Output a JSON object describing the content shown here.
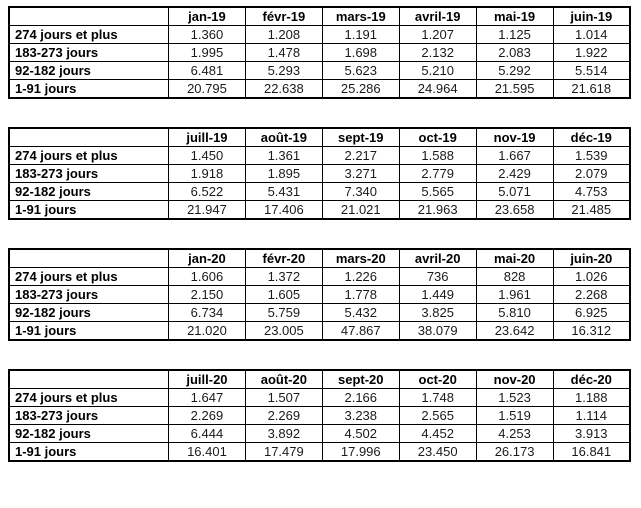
{
  "tables": [
    {
      "name": "jan-juin-2019",
      "header": [
        "",
        "jan-19",
        "févr-19",
        "mars-19",
        "avril-19",
        "mai-19",
        "juin-19"
      ],
      "rows": [
        [
          "274 jours et plus",
          "1.360",
          "1.208",
          "1.191",
          "1.207",
          "1.125",
          "1.014"
        ],
        [
          "183-273 jours",
          "1.995",
          "1.478",
          "1.698",
          "2.132",
          "2.083",
          "1.922"
        ],
        [
          "92-182 jours",
          "6.481",
          "5.293",
          "5.623",
          "5.210",
          "5.292",
          "5.514"
        ],
        [
          "1-91 jours",
          "20.795",
          "22.638",
          "25.286",
          "24.964",
          "21.595",
          "21.618"
        ]
      ]
    },
    {
      "name": "juill-dec-2019",
      "header": [
        "",
        "juill-19",
        "août-19",
        "sept-19",
        "oct-19",
        "nov-19",
        "déc-19"
      ],
      "rows": [
        [
          "274 jours et plus",
          "1.450",
          "1.361",
          "2.217",
          "1.588",
          "1.667",
          "1.539"
        ],
        [
          "183-273 jours",
          "1.918",
          "1.895",
          "3.271",
          "2.779",
          "2.429",
          "2.079"
        ],
        [
          "92-182 jours",
          "6.522",
          "5.431",
          "7.340",
          "5.565",
          "5.071",
          "4.753"
        ],
        [
          "1-91 jours",
          "21.947",
          "17.406",
          "21.021",
          "21.963",
          "23.658",
          "21.485"
        ]
      ]
    },
    {
      "name": "jan-juin-2020",
      "header": [
        "",
        "jan-20",
        "févr-20",
        "mars-20",
        "avril-20",
        "mai-20",
        "juin-20"
      ],
      "rows": [
        [
          "274 jours et plus",
          "1.606",
          "1.372",
          "1.226",
          "736",
          "828",
          "1.026"
        ],
        [
          "183-273 jours",
          "2.150",
          "1.605",
          "1.778",
          "1.449",
          "1.961",
          "2.268"
        ],
        [
          "92-182 jours",
          "6.734",
          "5.759",
          "5.432",
          "3.825",
          "5.810",
          "6.925"
        ],
        [
          "1-91 jours",
          "21.020",
          "23.005",
          "47.867",
          "38.079",
          "23.642",
          "16.312"
        ]
      ]
    },
    {
      "name": "juill-dec-2020",
      "header": [
        "",
        "juill-20",
        "août-20",
        "sept-20",
        "oct-20",
        "nov-20",
        "déc-20"
      ],
      "rows": [
        [
          "274 jours et plus",
          "1.647",
          "1.507",
          "2.166",
          "1.748",
          "1.523",
          "1.188"
        ],
        [
          "183-273 jours",
          "2.269",
          "2.269",
          "3.238",
          "2.565",
          "1.519",
          "1.114"
        ],
        [
          "92-182 jours",
          "6.444",
          "3.892",
          "4.502",
          "4.452",
          "4.253",
          "3.913"
        ],
        [
          "1-91 jours",
          "16.401",
          "17.479",
          "17.996",
          "23.450",
          "26.173",
          "16.841"
        ]
      ]
    }
  ]
}
